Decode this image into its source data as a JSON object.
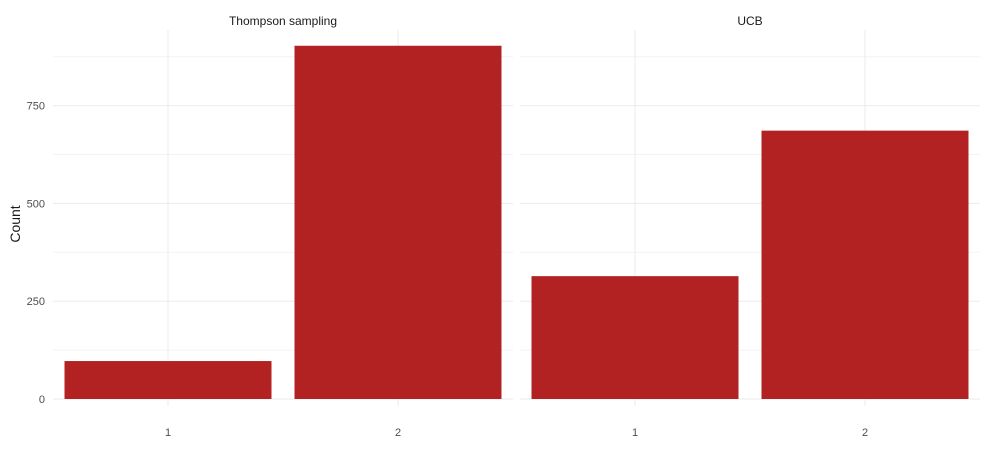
{
  "chart_data": {
    "type": "bar",
    "ylabel": "Count",
    "ylim": [
      0,
      930
    ],
    "yticks": [
      0,
      250,
      500,
      750
    ],
    "bar_color": "#B22222",
    "grid": true,
    "facets": [
      {
        "title": "Thompson sampling",
        "categories": [
          "1",
          "2"
        ],
        "values": [
          97,
          903
        ]
      },
      {
        "title": "UCB",
        "categories": [
          "1",
          "2"
        ],
        "values": [
          314,
          686
        ]
      }
    ]
  }
}
